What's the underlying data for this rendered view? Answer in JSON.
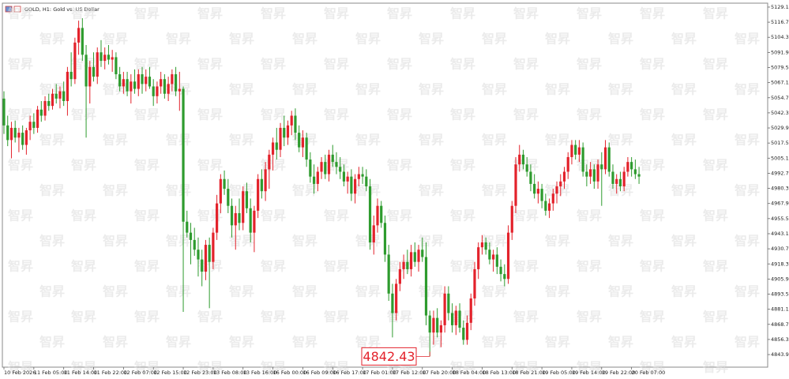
{
  "chart_data": {
    "type": "candlestick",
    "title": "GOLD, H1:  Gold vs. US Dollar",
    "watermark": "智昇",
    "up_color": "#e3222b",
    "down_color": "#2e9b2e",
    "ylim": [
      4833.6,
      5131.7
    ],
    "yticks": [
      5129.13,
      5116.73,
      5104.33,
      5091.93,
      5079.53,
      5067.13,
      5054.73,
      5042.33,
      5029.93,
      5017.53,
      5005.13,
      4992.73,
      4980.33,
      4967.93,
      4955.53,
      4943.13,
      4930.73,
      4918.33,
      4905.93,
      4893.53,
      4881.13,
      4868.73,
      4856.33,
      4843.93
    ],
    "categories": [
      "10 Feb 2026",
      null,
      null,
      null,
      null,
      null,
      null,
      null,
      "11 Feb 05:00",
      null,
      null,
      null,
      null,
      null,
      null,
      null,
      "11 Feb 14:00",
      null,
      null,
      null,
      null,
      null,
      null,
      null,
      "11 Feb 22:00",
      null,
      null,
      null,
      null,
      null,
      null,
      null,
      "12 Feb 07:00",
      null,
      null,
      null,
      null,
      null,
      null,
      null,
      "12 Feb 15:00",
      null,
      null,
      null,
      null,
      null,
      null,
      null,
      "12 Feb 23:00",
      null,
      null,
      null,
      null,
      null,
      null,
      null,
      "13 Feb 08:00",
      null,
      null,
      null,
      null,
      null,
      null,
      null,
      "13 Feb 16:00",
      null,
      null,
      null,
      null,
      null,
      null,
      null,
      "16 Feb 00:00",
      null,
      null,
      null,
      null,
      null,
      null,
      null,
      "16 Feb 09:00",
      null,
      null,
      null,
      null,
      null,
      null,
      null,
      "16 Feb 17:00",
      null,
      null,
      null,
      null,
      null,
      null,
      null,
      "17 Feb 01:00",
      null,
      null,
      null,
      null,
      null,
      null,
      null,
      "17 Feb 12:00",
      null,
      null,
      null,
      null,
      null,
      null,
      null,
      "17 Feb 20:00",
      null,
      null,
      null,
      null,
      null,
      null,
      null,
      "18 Feb 04:00",
      null,
      null,
      null,
      null,
      null,
      null,
      null,
      "18 Feb 13:00",
      null,
      null,
      null,
      null,
      null,
      null,
      null,
      "18 Feb 21:00",
      null,
      null,
      null,
      null,
      null,
      null,
      null,
      "19 Feb 05:00",
      null,
      null,
      null,
      null,
      null,
      null,
      null,
      "19 Feb 14:00",
      null,
      null,
      null,
      null,
      null,
      null,
      null,
      "19 Feb 22:00",
      null,
      null,
      null,
      null,
      null,
      null,
      null,
      "20 Feb 07:00",
      null,
      null
    ],
    "ohlc": [
      [
        5054,
        5060,
        5025,
        5032
      ],
      [
        5032,
        5040,
        5015,
        5020
      ],
      [
        5020,
        5035,
        5005,
        5030
      ],
      [
        5030,
        5036,
        5018,
        5022
      ],
      [
        5022,
        5030,
        5010,
        5026
      ],
      [
        5026,
        5032,
        5012,
        5016
      ],
      [
        5016,
        5030,
        5008,
        5028
      ],
      [
        5028,
        5040,
        5020,
        5035
      ],
      [
        5035,
        5042,
        5025,
        5030
      ],
      [
        5030,
        5048,
        5026,
        5045
      ],
      [
        5045,
        5052,
        5035,
        5040
      ],
      [
        5040,
        5056,
        5036,
        5052
      ],
      [
        5052,
        5058,
        5044,
        5048
      ],
      [
        5048,
        5062,
        5045,
        5058
      ],
      [
        5058,
        5066,
        5050,
        5054
      ],
      [
        5054,
        5064,
        5046,
        5060
      ],
      [
        5060,
        5068,
        5048,
        5052
      ],
      [
        5052,
        5080,
        5040,
        5076
      ],
      [
        5076,
        5092,
        5064,
        5070
      ],
      [
        5070,
        5104,
        5066,
        5100
      ],
      [
        5100,
        5118,
        5090,
        5112
      ],
      [
        5112,
        5120,
        5085,
        5090
      ],
      [
        5090,
        5098,
        5022,
        5064
      ],
      [
        5064,
        5085,
        5050,
        5080
      ],
      [
        5080,
        5092,
        5068,
        5072
      ],
      [
        5072,
        5096,
        5066,
        5092
      ],
      [
        5092,
        5102,
        5080,
        5085
      ],
      [
        5085,
        5096,
        5078,
        5090
      ],
      [
        5090,
        5098,
        5082,
        5086
      ],
      [
        5086,
        5094,
        5076,
        5088
      ],
      [
        5088,
        5092,
        5070,
        5074
      ],
      [
        5074,
        5080,
        5060,
        5064
      ],
      [
        5064,
        5076,
        5058,
        5070
      ],
      [
        5070,
        5076,
        5056,
        5060
      ],
      [
        5060,
        5074,
        5050,
        5068
      ],
      [
        5068,
        5078,
        5058,
        5062
      ],
      [
        5062,
        5078,
        5056,
        5074
      ],
      [
        5074,
        5080,
        5058,
        5066
      ],
      [
        5066,
        5078,
        5060,
        5072
      ],
      [
        5072,
        5080,
        5062,
        5064
      ],
      [
        5064,
        5070,
        5048,
        5056
      ],
      [
        5056,
        5068,
        5050,
        5064
      ],
      [
        5064,
        5076,
        5058,
        5070
      ],
      [
        5070,
        5074,
        5054,
        5058
      ],
      [
        5058,
        5072,
        5052,
        5066
      ],
      [
        5066,
        5078,
        5060,
        5074
      ],
      [
        5074,
        5080,
        5056,
        5060
      ],
      [
        5060,
        5076,
        5044,
        5062
      ],
      [
        5062,
        5064,
        4879,
        4953
      ],
      [
        4953,
        4962,
        4940,
        4944
      ],
      [
        4944,
        4952,
        4918,
        4938
      ],
      [
        4938,
        4948,
        4925,
        4930
      ],
      [
        4930,
        4940,
        4908,
        4922
      ],
      [
        4922,
        4930,
        4900,
        4912
      ],
      [
        4912,
        4938,
        4905,
        4934
      ],
      [
        4934,
        4940,
        4882,
        4920
      ],
      [
        4920,
        4948,
        4914,
        4944
      ],
      [
        4944,
        4975,
        4938,
        4968
      ],
      [
        4968,
        4992,
        4960,
        4988
      ],
      [
        4988,
        4995,
        4975,
        4980
      ],
      [
        4980,
        4988,
        4960,
        4966
      ],
      [
        4966,
        4972,
        4940,
        4950
      ],
      [
        4950,
        4966,
        4930,
        4960
      ],
      [
        4960,
        4972,
        4946,
        4952
      ],
      [
        4952,
        4982,
        4946,
        4978
      ],
      [
        4978,
        4985,
        4960,
        4964
      ],
      [
        4964,
        4972,
        4936,
        4944
      ],
      [
        4944,
        4966,
        4928,
        4962
      ],
      [
        4962,
        4992,
        4956,
        4988
      ],
      [
        4988,
        4996,
        4972,
        4978
      ],
      [
        4978,
        5002,
        4970,
        4996
      ],
      [
        4996,
        5012,
        4980,
        5008
      ],
      [
        5008,
        5022,
        4995,
        5018
      ],
      [
        5018,
        5030,
        5004,
        5012
      ],
      [
        5012,
        5034,
        5006,
        5030
      ],
      [
        5030,
        5040,
        5015,
        5022
      ],
      [
        5022,
        5036,
        5016,
        5032
      ],
      [
        5032,
        5044,
        5024,
        5040
      ],
      [
        5040,
        5046,
        5020,
        5026
      ],
      [
        5026,
        5032,
        5010,
        5014
      ],
      [
        5014,
        5028,
        5006,
        5022
      ],
      [
        5022,
        5026,
        4998,
        5004
      ],
      [
        5004,
        5010,
        4985,
        4990
      ],
      [
        4990,
        5000,
        4976,
        4984
      ],
      [
        4984,
        4998,
        4978,
        4994
      ],
      [
        4994,
        5006,
        4988,
        5002
      ],
      [
        5002,
        5008,
        4988,
        4992
      ],
      [
        4992,
        5012,
        4986,
        5008
      ],
      [
        5008,
        5016,
        4998,
        5002
      ],
      [
        5002,
        5010,
        4992,
        4998
      ],
      [
        4998,
        5006,
        4988,
        4994
      ],
      [
        4994,
        5000,
        4982,
        4986
      ],
      [
        4986,
        4994,
        4976,
        4990
      ],
      [
        4990,
        4996,
        4970,
        4976
      ],
      [
        4976,
        4992,
        4968,
        4988
      ],
      [
        4988,
        4998,
        4982,
        4992
      ],
      [
        4992,
        4998,
        4984,
        4990
      ],
      [
        4990,
        4996,
        4978,
        4982
      ],
      [
        4982,
        4988,
        4930,
        4936
      ],
      [
        4936,
        4958,
        4926,
        4950
      ],
      [
        4950,
        4972,
        4944,
        4966
      ],
      [
        4966,
        4970,
        4948,
        4952
      ],
      [
        4952,
        4958,
        4920,
        4926
      ],
      [
        4926,
        4934,
        4888,
        4894
      ],
      [
        4894,
        4902,
        4858,
        4878
      ],
      [
        4878,
        4906,
        4872,
        4902
      ],
      [
        4902,
        4920,
        4896,
        4914
      ],
      [
        4914,
        4926,
        4906,
        4920
      ],
      [
        4920,
        4930,
        4910,
        4914
      ],
      [
        4914,
        4934,
        4908,
        4928
      ],
      [
        4928,
        4936,
        4916,
        4920
      ],
      [
        4920,
        4934,
        4912,
        4930
      ],
      [
        4930,
        4940,
        4920,
        4924
      ],
      [
        4924,
        4936,
        4868,
        4876
      ],
      [
        4876,
        4880,
        4842.43,
        4862
      ],
      [
        4862,
        4880,
        4852,
        4874
      ],
      [
        4874,
        4882,
        4858,
        4862
      ],
      [
        4862,
        4872,
        4850,
        4868
      ],
      [
        4868,
        4900,
        4862,
        4894
      ],
      [
        4894,
        4900,
        4872,
        4878
      ],
      [
        4878,
        4886,
        4862,
        4868
      ],
      [
        4868,
        4884,
        4860,
        4880
      ],
      [
        4880,
        4886,
        4862,
        4866
      ],
      [
        4866,
        4872,
        4852,
        4856
      ],
      [
        4856,
        4876,
        4852,
        4870
      ],
      [
        4870,
        4894,
        4864,
        4890
      ],
      [
        4890,
        4920,
        4884,
        4914
      ],
      [
        4914,
        4936,
        4906,
        4932
      ],
      [
        4932,
        4942,
        4926,
        4936
      ],
      [
        4936,
        4940,
        4926,
        4930
      ],
      [
        4930,
        4936,
        4918,
        4922
      ],
      [
        4922,
        4930,
        4912,
        4926
      ],
      [
        4926,
        4932,
        4910,
        4916
      ],
      [
        4916,
        4922,
        4904,
        4910
      ],
      [
        4910,
        4918,
        4900,
        4906
      ],
      [
        4906,
        4950,
        4902,
        4944
      ],
      [
        4944,
        4970,
        4938,
        4966
      ],
      [
        4966,
        5006,
        4960,
        5000
      ],
      [
        5000,
        5016,
        4994,
        5008
      ],
      [
        5008,
        5012,
        4996,
        5000
      ],
      [
        5000,
        5006,
        4990,
        4994
      ],
      [
        4994,
        5000,
        4978,
        4984
      ],
      [
        4984,
        4992,
        4972,
        4976
      ],
      [
        4976,
        4986,
        4968,
        4980
      ],
      [
        4980,
        4984,
        4964,
        4970
      ],
      [
        4970,
        4976,
        4958,
        4962
      ],
      [
        4962,
        4972,
        4956,
        4968
      ],
      [
        4968,
        4980,
        4962,
        4976
      ],
      [
        4976,
        4986,
        4968,
        4982
      ],
      [
        4982,
        4992,
        4974,
        4986
      ],
      [
        4986,
        4998,
        4980,
        4994
      ],
      [
        4994,
        5010,
        4988,
        5006
      ],
      [
        5006,
        5020,
        5000,
        5016
      ],
      [
        5016,
        5020,
        5004,
        5008
      ],
      [
        5008,
        5020,
        5002,
        5014
      ],
      [
        5014,
        5018,
        4990,
        4994
      ],
      [
        4994,
        5000,
        4982,
        4990
      ],
      [
        4990,
        5002,
        4984,
        4996
      ],
      [
        4996,
        5000,
        4980,
        4986
      ],
      [
        4986,
        5004,
        4980,
        5000
      ],
      [
        5000,
        5010,
        4966,
        4996
      ],
      [
        4996,
        5020,
        4992,
        5014
      ],
      [
        5014,
        5018,
        4990,
        4994
      ],
      [
        4994,
        5000,
        4980,
        4984
      ],
      [
        4984,
        4992,
        4976,
        4988
      ],
      [
        4988,
        4994,
        4978,
        4982
      ],
      [
        4982,
        4998,
        4978,
        4994
      ],
      [
        4994,
        5006,
        4990,
        5002
      ],
      [
        5002,
        5006,
        4990,
        4996
      ],
      [
        4996,
        5004,
        4988,
        4992
      ],
      [
        4992,
        4998,
        4984,
        4990
      ]
    ],
    "low_marker_index": 114
  }
}
